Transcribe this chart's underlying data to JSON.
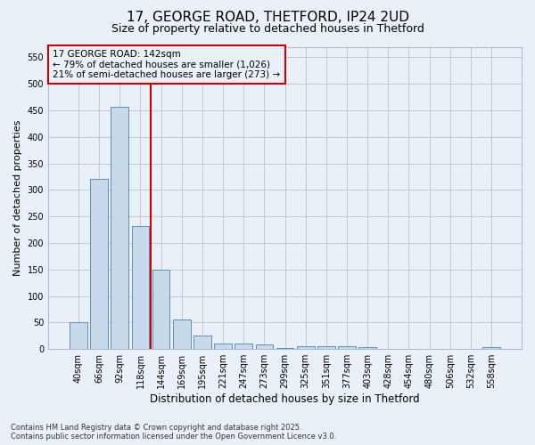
{
  "title1": "17, GEORGE ROAD, THETFORD, IP24 2UD",
  "title2": "Size of property relative to detached houses in Thetford",
  "xlabel": "Distribution of detached houses by size in Thetford",
  "ylabel": "Number of detached properties",
  "categories": [
    "40sqm",
    "66sqm",
    "92sqm",
    "118sqm",
    "144sqm",
    "169sqm",
    "195sqm",
    "221sqm",
    "247sqm",
    "273sqm",
    "299sqm",
    "325sqm",
    "351sqm",
    "377sqm",
    "403sqm",
    "428sqm",
    "454sqm",
    "480sqm",
    "506sqm",
    "532sqm",
    "558sqm"
  ],
  "values": [
    50,
    320,
    457,
    232,
    150,
    56,
    25,
    10,
    10,
    8,
    2,
    5,
    6,
    6,
    3,
    0,
    0,
    0,
    0,
    0,
    4
  ],
  "bar_color": "#c8d9ea",
  "bar_edge_color": "#5a8fc0",
  "grid_color": "#c0c8d8",
  "bg_color": "#eaf0f8",
  "ref_line_color": "#cc0000",
  "annotation_text": "17 GEORGE ROAD: 142sqm\n← 79% of detached houses are smaller (1,026)\n21% of semi-detached houses are larger (273) →",
  "annotation_box_color": "#cc0000",
  "ylim": [
    0,
    570
  ],
  "yticks": [
    0,
    50,
    100,
    150,
    200,
    250,
    300,
    350,
    400,
    450,
    500,
    550
  ],
  "footer": "Contains HM Land Registry data © Crown copyright and database right 2025.\nContains public sector information licensed under the Open Government Licence v3.0.",
  "title1_fontsize": 11,
  "title2_fontsize": 9,
  "xlabel_fontsize": 8.5,
  "ylabel_fontsize": 8,
  "tick_fontsize": 7,
  "annotation_fontsize": 7.5,
  "footer_fontsize": 6
}
